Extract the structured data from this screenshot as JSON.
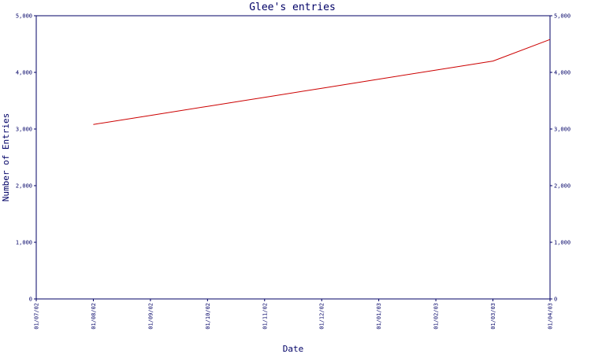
{
  "chart_data": {
    "type": "line",
    "title": "Glee's entries",
    "xlabel": "Date",
    "ylabel": "Number of Entries",
    "x_ticks": [
      "01/07/02",
      "01/08/02",
      "01/09/02",
      "01/10/02",
      "01/11/02",
      "01/12/02",
      "01/01/03",
      "01/02/03",
      "01/03/03",
      "01/04/03"
    ],
    "y_ticks": [
      0,
      1000,
      2000,
      3000,
      4000,
      5000
    ],
    "y_tick_labels": [
      "0",
      "1,000",
      "2,000",
      "3,000",
      "4,000",
      "5,000"
    ],
    "ylim": [
      0,
      5000
    ],
    "xlim": [
      "01/07/02",
      "01/04/03"
    ],
    "grid": false,
    "colors": {
      "axis": "#000066",
      "series": "#cc0000"
    },
    "series": [
      {
        "x": [
          "01/08/02",
          "01/04/03"
        ],
        "points": [
          {
            "x": "01/08/02",
            "y": 3080
          },
          {
            "x": "01/09/02",
            "y": 3240
          },
          {
            "x": "01/10/02",
            "y": 3400
          },
          {
            "x": "01/11/02",
            "y": 3560
          },
          {
            "x": "01/12/02",
            "y": 3720
          },
          {
            "x": "01/01/03",
            "y": 3880
          },
          {
            "x": "01/02/03",
            "y": 4040
          },
          {
            "x": "01/03/03",
            "y": 4200
          },
          {
            "x": "01/04/03",
            "y": 4580
          }
        ]
      }
    ]
  }
}
